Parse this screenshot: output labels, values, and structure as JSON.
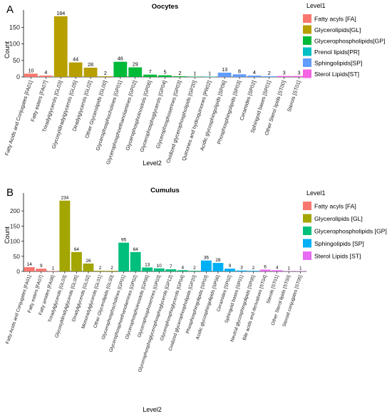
{
  "chart_data": [
    {
      "panel": "A",
      "type": "bar",
      "title": "Oocytes",
      "xlabel": "Level2",
      "ylabel": "Count",
      "ylim": [
        0,
        190
      ],
      "yticks": [
        0,
        50,
        100,
        150
      ],
      "grid": false,
      "legend_title": "Level1",
      "legend_position": "right",
      "legend": [
        {
          "name": "Fatty acyls [FA]",
          "color": "#F8766D"
        },
        {
          "name": "Glycerolipids[GL]",
          "color": "#B79F00"
        },
        {
          "name": "Glycerophospholipids[GP]",
          "color": "#00BA38"
        },
        {
          "name": "Prenol lipids[PR]",
          "color": "#00BFC4"
        },
        {
          "name": "Sphingolipids[SP]",
          "color": "#619CFF"
        },
        {
          "name": "Sterol Lipids[ST]",
          "color": "#F564E3"
        }
      ],
      "categories": [
        "Fatty Acids and Conjugates [FA01]",
        "Fatty esters [FA07]",
        "Triradylglycerols [GL03]",
        "Glycosyldiradylglycerols [GL05]",
        "Diradylglycerols [GL02]",
        "Other Glycerolipids [GL00]",
        "Glycerophosphocholines [GP01]",
        "Glycerophosphoethanolamines [GP02]",
        "Glycerophosphoinositols [GP06]",
        "Glycerophosphoglycerols [GP04]",
        "Glycerophosphoserines [GP03]",
        "Oxidized glycerophospholipids [GP20]",
        "Quinones and hydroquinones [PR02]",
        "Acidic glycosphingolipids [SP06]",
        "Phosphosphingolipids [SP03]",
        "Ceramides [SP02]",
        "Sphingoid bases [SP01]",
        "Other Sterol lipids [ST00]",
        "Sterols [ST01]"
      ],
      "values": [
        10,
        4,
        184,
        44,
        28,
        2,
        46,
        29,
        7,
        5,
        2,
        1,
        1,
        13,
        8,
        4,
        2,
        3,
        3
      ],
      "groups": [
        0,
        0,
        1,
        1,
        1,
        1,
        2,
        2,
        2,
        2,
        2,
        2,
        3,
        4,
        4,
        4,
        4,
        5,
        5
      ]
    },
    {
      "panel": "B",
      "type": "bar",
      "title": "Cumulus",
      "xlabel": "Level2",
      "ylabel": "Count",
      "ylim": [
        0,
        245
      ],
      "yticks": [
        0,
        50,
        100,
        150,
        200
      ],
      "grid": false,
      "legend_title": "Level1",
      "legend_position": "right",
      "legend": [
        {
          "name": "Fatty acyls [FA]",
          "color": "#F8766D"
        },
        {
          "name": "Glycerolipids [GL]",
          "color": "#A3A500"
        },
        {
          "name": "Glycerophospholipids [GP]",
          "color": "#00BF7D"
        },
        {
          "name": "Sphingolipids [SP]",
          "color": "#00B0F6"
        },
        {
          "name": "Sterol Lipids [ST]",
          "color": "#E76BF3"
        }
      ],
      "categories": [
        "Fatty Acids and Conjugates [FA01]",
        "Fatty esters [FA07]",
        "Fatty amides [FA08]",
        "Triradylglycerols [GL03]",
        "Glycosyldiradylglycerols [GL05]",
        "Diradylglycerols [GL02]",
        "Monoradylglycerols [GL01]",
        "Other Glycerolipids [GL00]",
        "Glycerophosphocholines [GP01]",
        "Glycerophosphoethanolamines [GP02]",
        "Glycerophosphoinositols [GP06]",
        "Glycerophosphoserines [GP03]",
        "Glycerophosphoglycerophosphoglycerols [GP12]",
        "Glycerophosphoglycerols [GP04]",
        "Oxidized glycerophospholipids [GP20]",
        "Phosphosphingolipids [SP03]",
        "Acidic glycosphingolipids [SP06]",
        "Ceramides [SP02]",
        "Sphingoid bases [SP01]",
        "Neutral glycosphingolipids [SP05]",
        "Bile acids and derivatives [ST04]",
        "Sterols [ST01]",
        "Other Sterol lipids [ST00]",
        "Steroid conjugates [ST05]"
      ],
      "values": [
        14,
        9,
        1,
        234,
        64,
        26,
        2,
        2,
        95,
        64,
        13,
        10,
        7,
        4,
        2,
        36,
        28,
        9,
        3,
        2,
        6,
        4,
        1,
        1
      ],
      "groups": [
        0,
        0,
        0,
        1,
        1,
        1,
        1,
        1,
        2,
        2,
        2,
        2,
        2,
        2,
        2,
        3,
        3,
        3,
        3,
        3,
        4,
        4,
        4,
        4
      ]
    }
  ]
}
